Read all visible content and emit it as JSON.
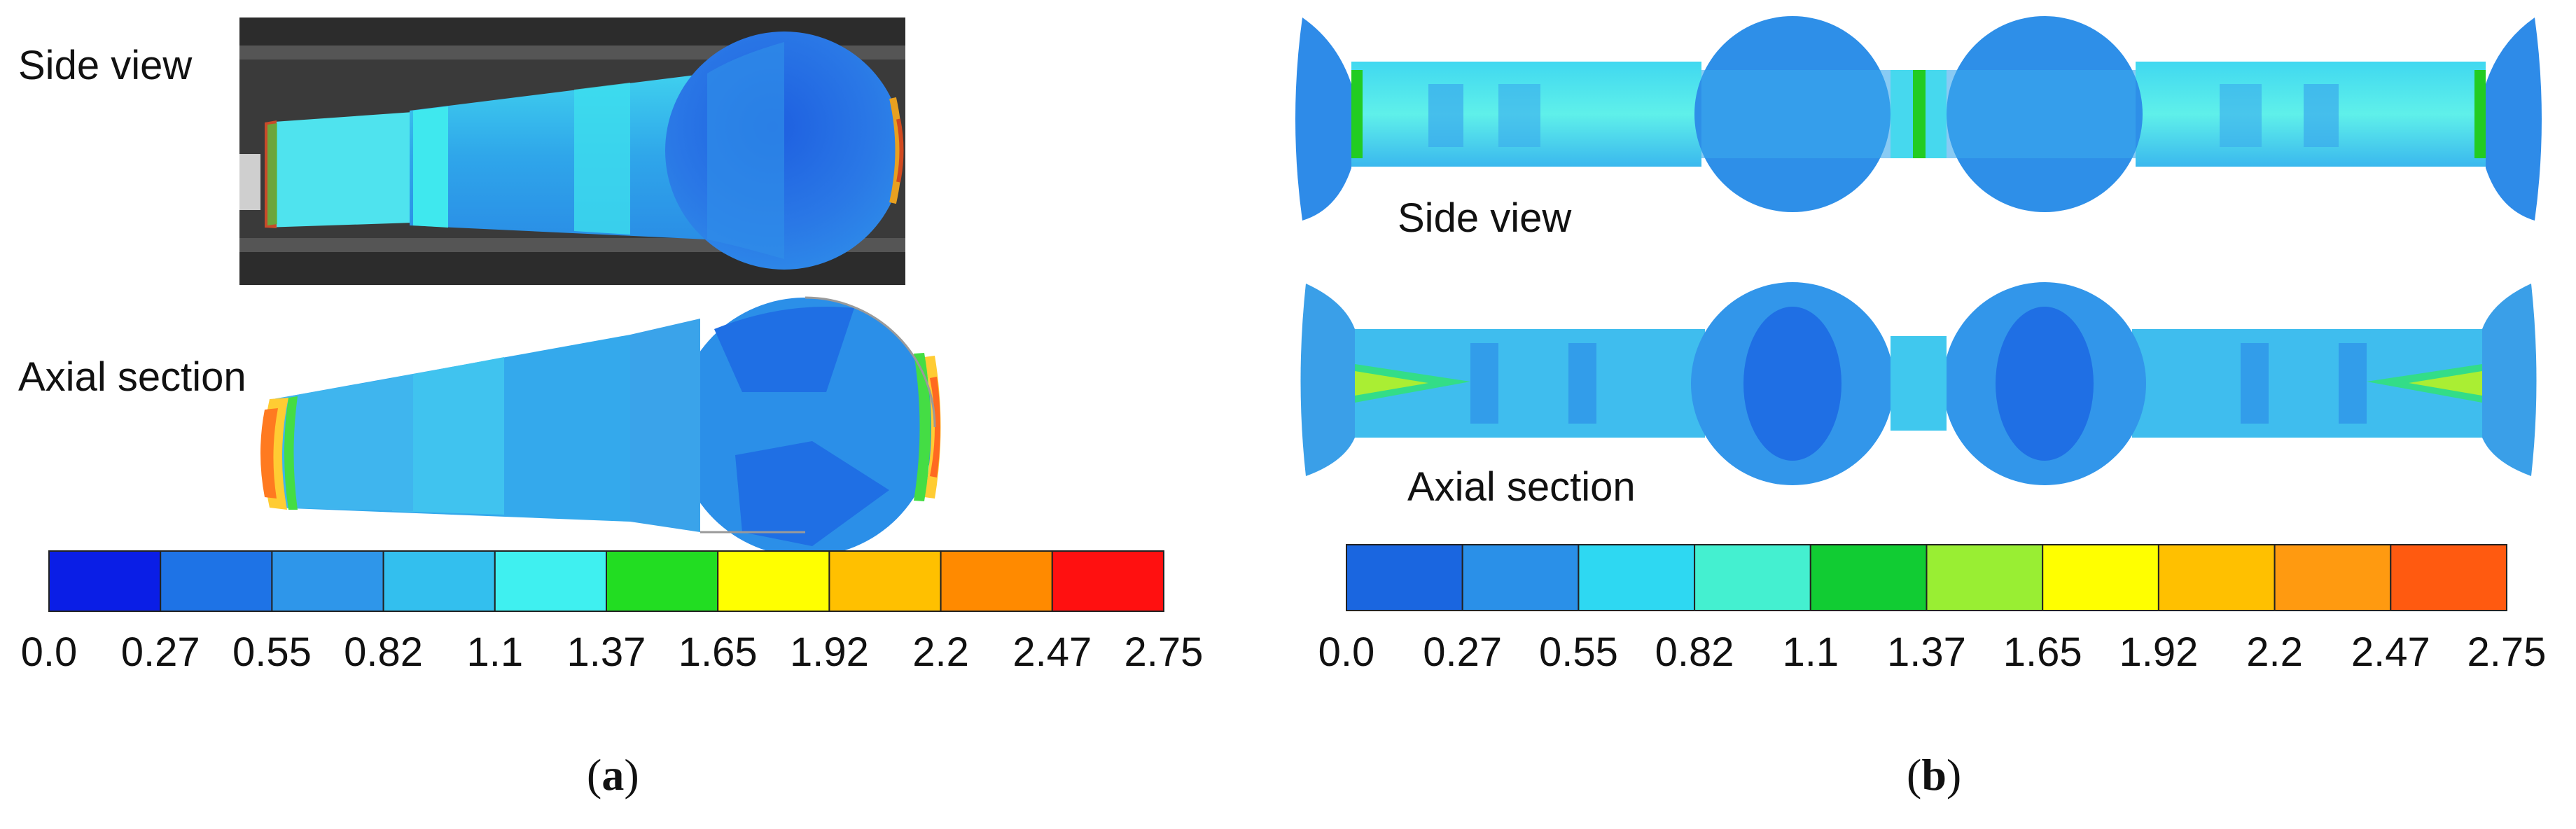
{
  "panel_a": {
    "side_view_label": "Side view",
    "axial_section_label": "Axial section",
    "caption_letter": "a",
    "colorbar": {
      "colors": [
        "#0a1ee6",
        "#1e73e6",
        "#2e96ea",
        "#33bfee",
        "#3ff0f0",
        "#22dd22",
        "#ffff00",
        "#ffc000",
        "#ff8a00",
        "#ff1010"
      ],
      "ticks": [
        "0.0",
        "0.27",
        "0.55",
        "0.82",
        "1.1",
        "1.37",
        "1.65",
        "1.92",
        "2.2",
        "2.47",
        "2.75"
      ]
    }
  },
  "panel_b": {
    "side_view_label": "Side view",
    "axial_section_label": "Axial section",
    "caption_letter": "b",
    "colorbar": {
      "colors": [
        "#1a66e0",
        "#2a90e8",
        "#2ed8f2",
        "#44f0d0",
        "#11cc33",
        "#99ee33",
        "#ffff00",
        "#ffc000",
        "#ff9a10",
        "#ff5a10"
      ],
      "ticks": [
        "0.0",
        "0.27",
        "0.55",
        "0.82",
        "1.1",
        "1.37",
        "1.65",
        "1.92",
        "2.2",
        "2.47",
        "2.75"
      ]
    }
  }
}
